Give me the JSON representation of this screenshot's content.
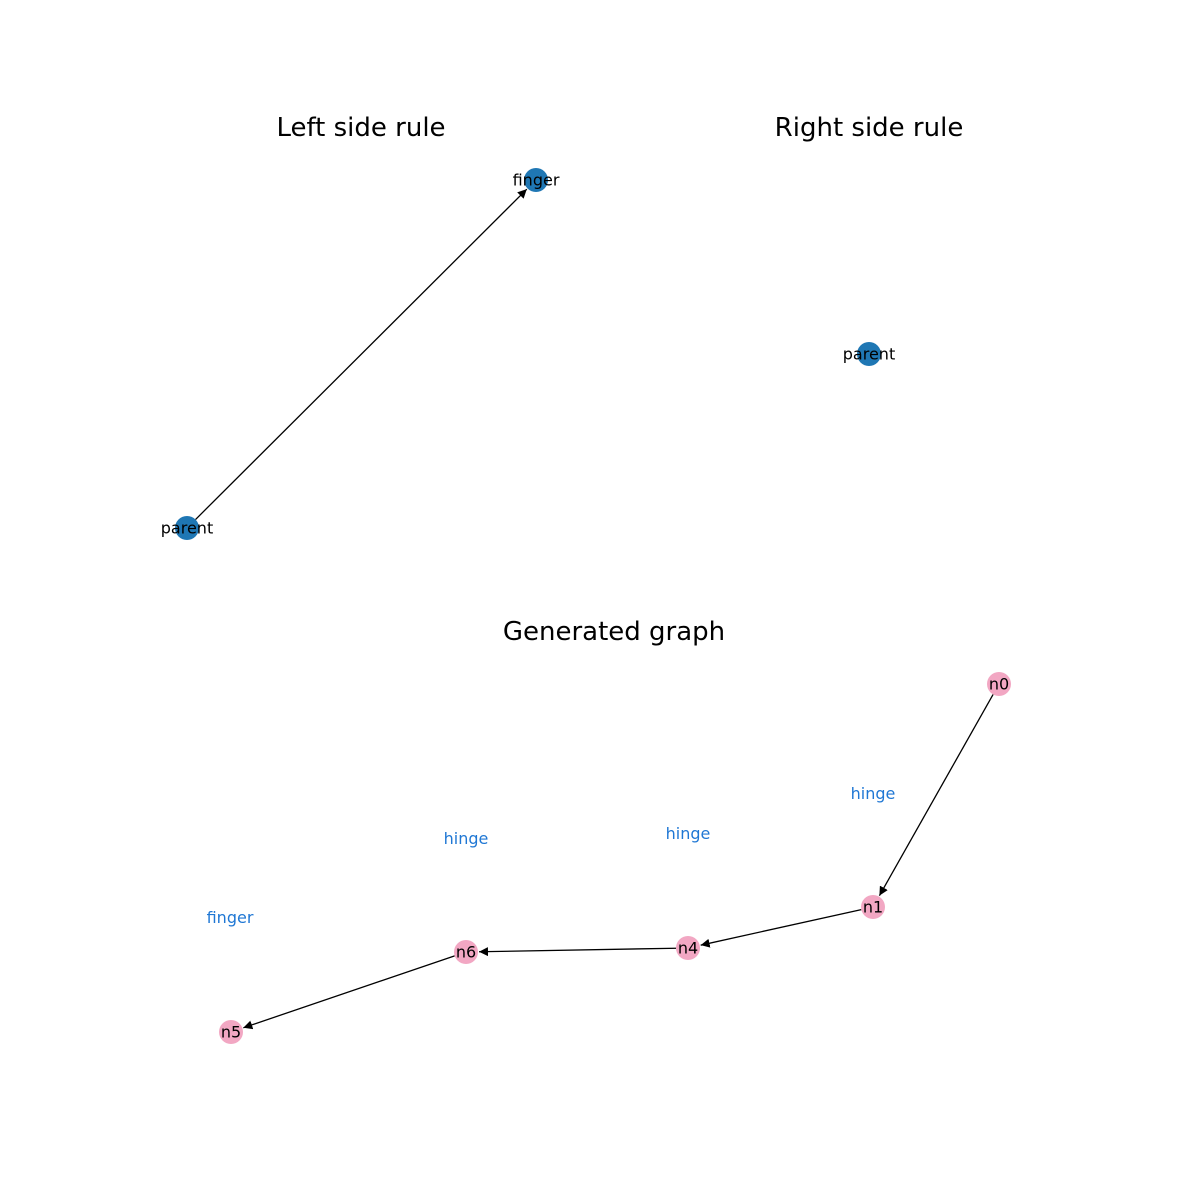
{
  "colors": {
    "rule_node": "#1f77b4",
    "generated_node": "#f2a7c3",
    "edge": "#000000",
    "edge_label": "#1f77d4"
  },
  "panels": {
    "left": {
      "title": "Left side rule",
      "nodes": [
        {
          "id": "finger",
          "label": "finger"
        },
        {
          "id": "parent",
          "label": "parent"
        }
      ],
      "edges": [
        {
          "from": "parent",
          "to": "finger"
        }
      ]
    },
    "right": {
      "title": "Right side rule",
      "nodes": [
        {
          "id": "parent",
          "label": "parent"
        }
      ],
      "edges": []
    },
    "generated": {
      "title": "Generated graph",
      "nodes": [
        {
          "id": "n0",
          "label": "n0"
        },
        {
          "id": "n1",
          "label": "n1"
        },
        {
          "id": "n4",
          "label": "n4"
        },
        {
          "id": "n6",
          "label": "n6"
        },
        {
          "id": "n5",
          "label": "n5"
        }
      ],
      "edges": [
        {
          "from": "n0",
          "to": "n1",
          "label": "hinge"
        },
        {
          "from": "n1",
          "to": "n4",
          "label": "hinge"
        },
        {
          "from": "n4",
          "to": "n6",
          "label": "hinge"
        },
        {
          "from": "n6",
          "to": "n5",
          "label": "finger"
        }
      ]
    }
  }
}
